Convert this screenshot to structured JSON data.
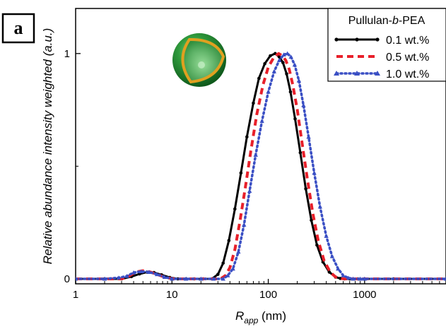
{
  "panel_label": "a",
  "colors": {
    "series_0": "#000000",
    "series_1": "#e8202a",
    "series_2": "#3a4fc4"
  },
  "inset_icon": "micelle-sphere-cutaway",
  "chart_data": {
    "type": "line",
    "xlabel_main": "R",
    "xlabel_sub": "app",
    "xlabel_unit": " (nm)",
    "ylabel": "Relative abundance intensity weighted (a.u.)",
    "x_scale": "log",
    "xlim": [
      1,
      7000
    ],
    "ylim": [
      0,
      1.2
    ],
    "x_ticks": [
      1,
      10,
      100,
      1000
    ],
    "x_tick_labels": [
      "1",
      "10",
      "100",
      "1000"
    ],
    "y_ticks": [
      0,
      1
    ],
    "y_tick_labels": [
      "0",
      "1"
    ],
    "legend": {
      "title_pre": "Pullulan-",
      "title_italic": "b",
      "title_post": "-PEA",
      "position": "top-right"
    },
    "series": [
      {
        "name": "0.1 wt.%",
        "style": "solid",
        "marker": "dot",
        "x": [
          1,
          2,
          3,
          3.8,
          4.6,
          5.5,
          6.5,
          7.8,
          9.5,
          11.5,
          14,
          17,
          21,
          26,
          30,
          34,
          39,
          45,
          52,
          60,
          70,
          80,
          92,
          105,
          118,
          130,
          142,
          155,
          170,
          190,
          215,
          245,
          280,
          320,
          370,
          430,
          500,
          560,
          620,
          700,
          850,
          1000,
          2000,
          7000
        ],
        "y": [
          0,
          0,
          0,
          0.01,
          0.022,
          0.03,
          0.028,
          0.018,
          0.006,
          0,
          0,
          0,
          0,
          0,
          0.02,
          0.07,
          0.17,
          0.31,
          0.47,
          0.63,
          0.78,
          0.89,
          0.955,
          0.99,
          1.0,
          0.985,
          0.96,
          0.91,
          0.83,
          0.71,
          0.56,
          0.4,
          0.26,
          0.15,
          0.075,
          0.03,
          0.008,
          0.002,
          0,
          0,
          0,
          0,
          0,
          0
        ]
      },
      {
        "name": "0.5 wt.%",
        "style": "dashed",
        "marker": "none",
        "x": [
          1,
          2,
          3,
          3.5,
          4.2,
          5,
          6,
          7.2,
          8.6,
          10.5,
          14,
          20,
          26,
          32,
          36,
          40,
          45,
          51,
          58,
          66,
          76,
          88,
          100,
          115,
          128,
          140,
          152,
          165,
          180,
          200,
          225,
          255,
          290,
          330,
          380,
          440,
          500,
          560,
          620,
          700,
          1000,
          7000
        ],
        "y": [
          0,
          0,
          0,
          0.01,
          0.03,
          0.036,
          0.03,
          0.018,
          0.006,
          0,
          0,
          0,
          0,
          0,
          0.015,
          0.05,
          0.13,
          0.26,
          0.41,
          0.57,
          0.73,
          0.86,
          0.94,
          0.985,
          1.0,
          0.99,
          0.97,
          0.93,
          0.86,
          0.75,
          0.6,
          0.44,
          0.29,
          0.17,
          0.08,
          0.03,
          0.008,
          0.002,
          0,
          0,
          0,
          0
        ]
      },
      {
        "name": "1.0 wt.%",
        "style": "dotted",
        "marker": "triangle",
        "x": [
          1,
          2,
          2.8,
          3.4,
          4,
          4.8,
          5.8,
          7,
          8.4,
          10,
          14,
          20,
          27,
          34,
          38,
          43,
          49,
          56,
          64,
          74,
          86,
          100,
          115,
          130,
          145,
          158,
          172,
          188,
          208,
          232,
          262,
          300,
          345,
          400,
          460,
          530,
          600,
          680,
          760,
          900,
          1000,
          7000
        ],
        "y": [
          0,
          0,
          0.005,
          0.012,
          0.028,
          0.033,
          0.03,
          0.02,
          0.008,
          0,
          0,
          0,
          0,
          0,
          0.015,
          0.045,
          0.12,
          0.24,
          0.39,
          0.55,
          0.7,
          0.83,
          0.92,
          0.97,
          0.995,
          1.0,
          0.985,
          0.95,
          0.88,
          0.77,
          0.63,
          0.47,
          0.32,
          0.19,
          0.1,
          0.045,
          0.015,
          0.004,
          0,
          0,
          0,
          0
        ]
      }
    ]
  }
}
